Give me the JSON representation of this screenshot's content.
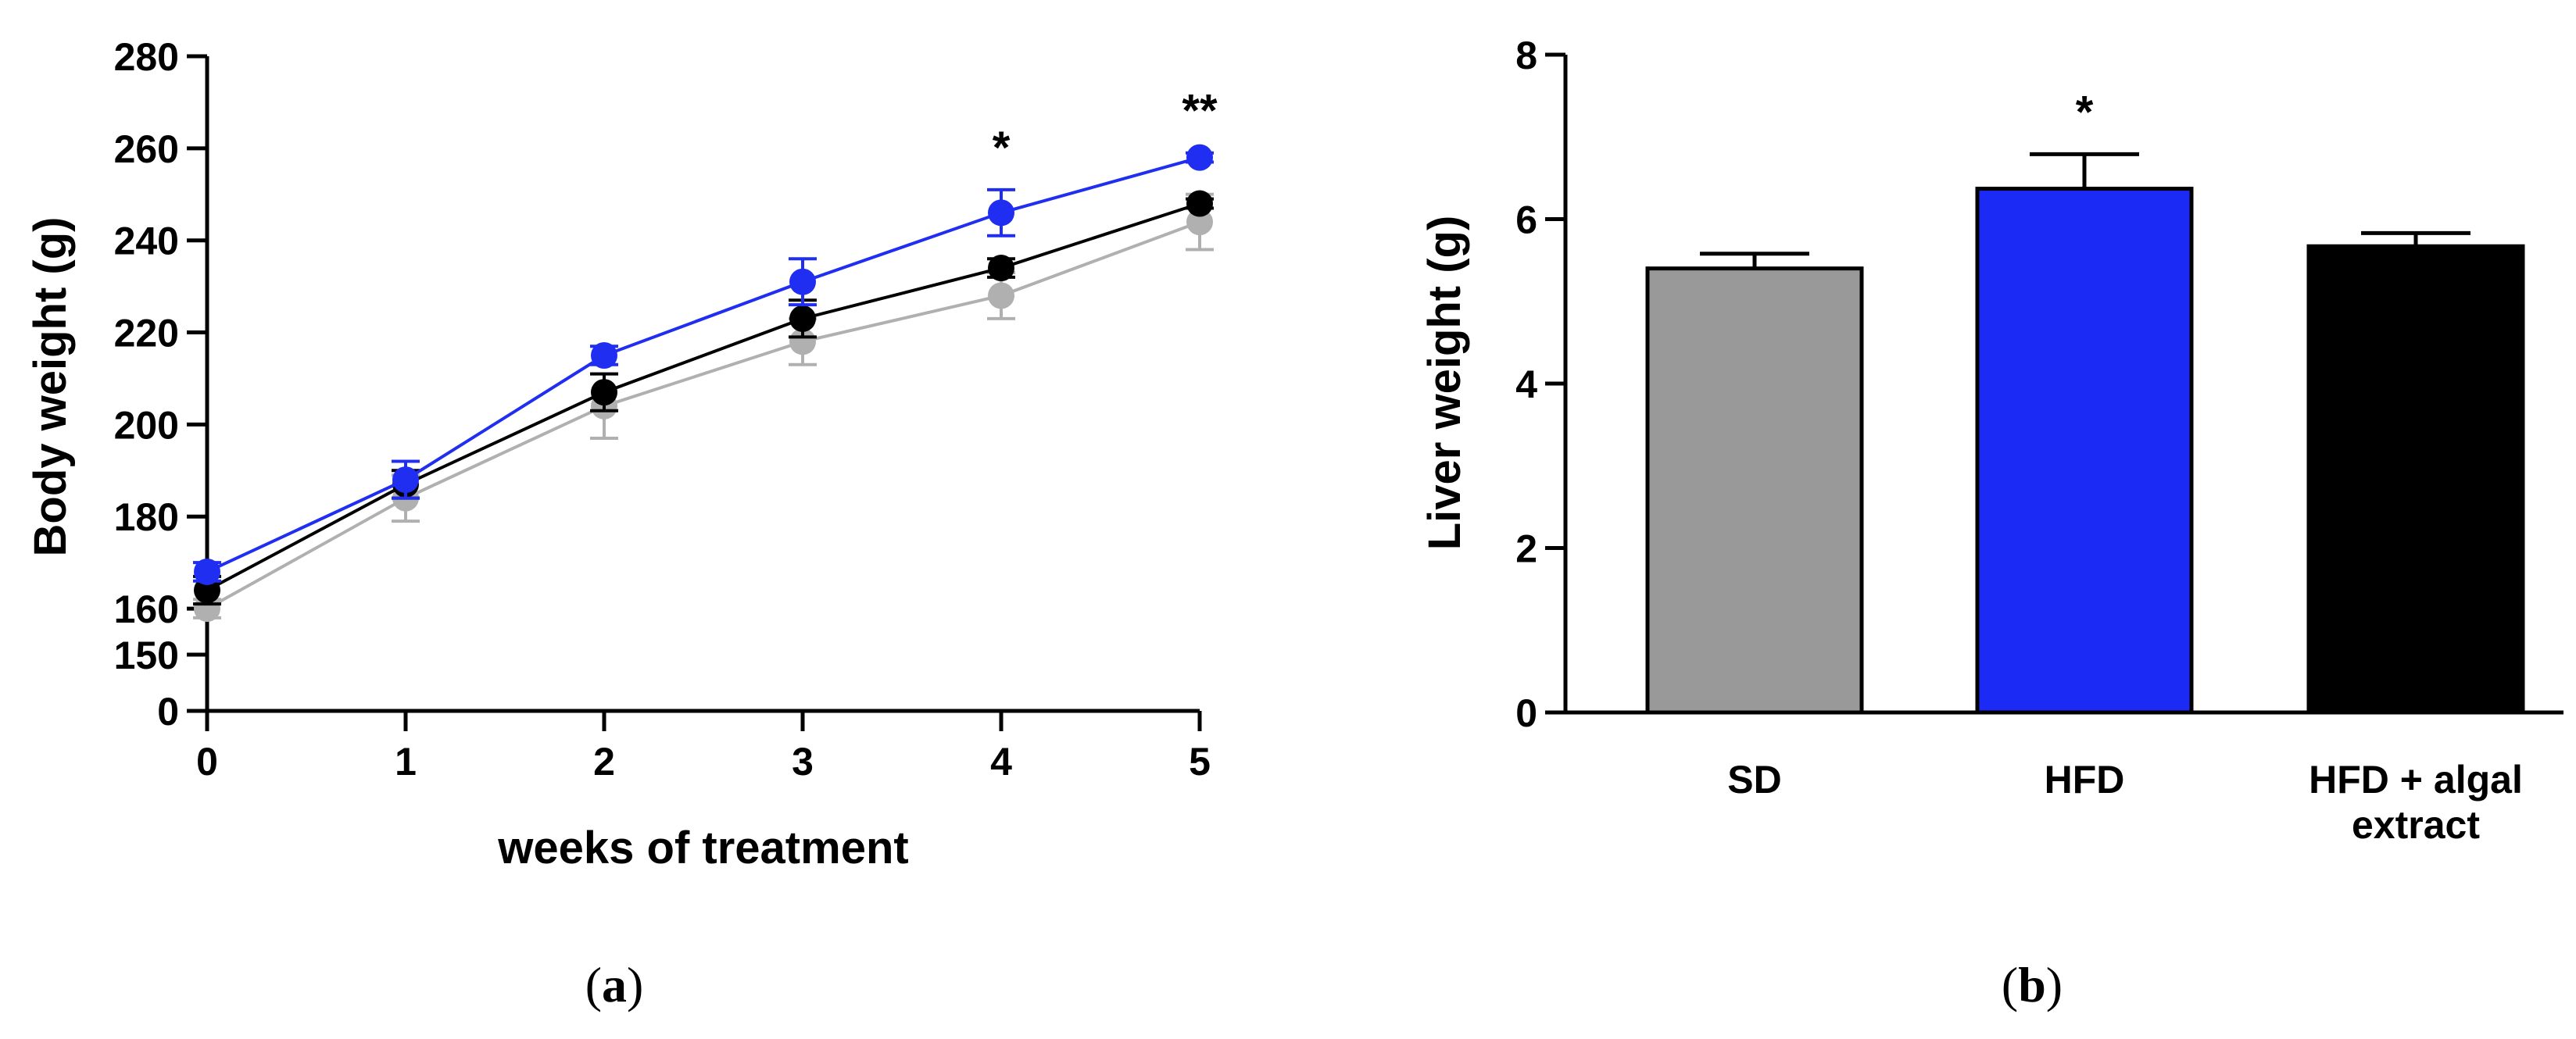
{
  "chart_data": [
    {
      "type": "line",
      "panel_label": "(a)",
      "panel_letter": "a",
      "xlabel": "weeks of treatment",
      "ylabel": "Body weight (g)",
      "xlim": [
        0,
        5
      ],
      "x_ticks": [
        "0",
        "1",
        "2",
        "3",
        "4",
        "5"
      ],
      "y_ticks": [
        "0",
        "150",
        "160",
        "180",
        "200",
        "220",
        "240",
        "260",
        "280"
      ],
      "y_axis_break": "0-150 shown compressed; 150-280 linear",
      "x": [
        0,
        1,
        2,
        3,
        4,
        5
      ],
      "series": [
        {
          "name": "HFD",
          "color": "#1f2ef0",
          "values": [
            168,
            188,
            215,
            231,
            246,
            258
          ],
          "errors": [
            2,
            4,
            2,
            5,
            5,
            1
          ]
        },
        {
          "name": "HFD + algal extract",
          "color": "#000000",
          "values": [
            164,
            187,
            207,
            223,
            234,
            248
          ],
          "errors": [
            3,
            3,
            4,
            4,
            2,
            1
          ]
        },
        {
          "name": "SD",
          "color": "#b0b0b0",
          "values": [
            160,
            184,
            204,
            218,
            228,
            244
          ],
          "errors": [
            2,
            5,
            7,
            5,
            5,
            6
          ]
        }
      ],
      "annotations": [
        {
          "x": 4,
          "text": "*"
        },
        {
          "x": 5,
          "text": "**"
        }
      ]
    },
    {
      "type": "bar",
      "panel_label": "(b)",
      "panel_letter": "b",
      "ylabel": "Liver weight (g)",
      "ylim": [
        0,
        8
      ],
      "y_ticks": [
        "0",
        "2",
        "4",
        "6",
        "8"
      ],
      "categories": [
        "SD",
        "HFD",
        "HFD + algal extract"
      ],
      "category_lines": [
        [
          "SD"
        ],
        [
          "HFD"
        ],
        [
          "HFD + algal",
          "extract"
        ]
      ],
      "values": [
        5.4,
        6.37,
        5.67
      ],
      "errors": [
        0.18,
        0.42,
        0.16
      ],
      "colors": [
        "#999999",
        "#1b2bf5",
        "#000000"
      ],
      "annotations": [
        {
          "category": "HFD",
          "text": "*"
        }
      ]
    }
  ]
}
